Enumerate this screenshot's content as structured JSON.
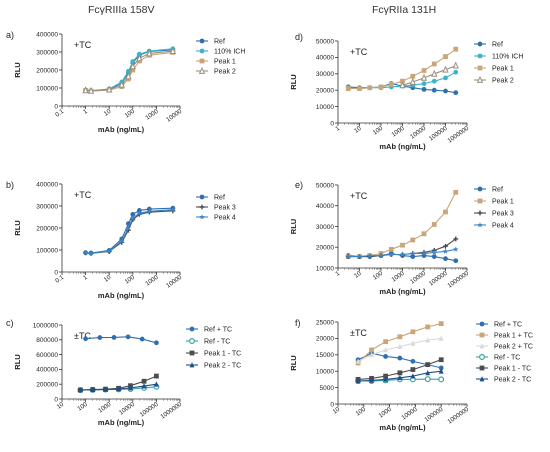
{
  "column_titles": [
    "FcγRIIIa 158V",
    "FcγRIIa 131H"
  ],
  "chart_data": [
    {
      "type": "line",
      "panel": "a)",
      "annotation": "+TC",
      "xlabel": "mAb (ng/mL)",
      "ylabel": "RLU",
      "xscale": "log",
      "xlim": [
        0.1,
        10000
      ],
      "ylim": [
        0,
        400000
      ],
      "xticks": [
        "0.1",
        "1",
        "10",
        "100",
        "1000",
        "10000"
      ],
      "yticks": [
        "0",
        "100000",
        "200000",
        "300000",
        "400000"
      ],
      "legend": "right",
      "grid": false,
      "series": [
        {
          "name": "Ref",
          "color": "#2f6fb0",
          "marker": "circle",
          "x": [
            1,
            1.7,
            10,
            34,
            65,
            100,
            190,
            500,
            5000
          ],
          "y": [
            88000,
            85000,
            93000,
            128000,
            185000,
            240000,
            283000,
            303000,
            312000
          ]
        },
        {
          "name": "110% ICH",
          "color": "#3bb3c9",
          "marker": "circle",
          "x": [
            1,
            1.7,
            10,
            34,
            65,
            100,
            190,
            500,
            5000
          ],
          "y": [
            87000,
            84000,
            95000,
            133000,
            193000,
            247000,
            288000,
            305000,
            318000
          ]
        },
        {
          "name": "Peak 1",
          "color": "#c9a679",
          "marker": "square",
          "x": [
            1,
            1.7,
            10,
            34,
            65,
            100,
            190,
            500,
            5000
          ],
          "y": [
            86000,
            83000,
            88000,
            108000,
            150000,
            200000,
            250000,
            282000,
            298000
          ]
        },
        {
          "name": "Peak 2",
          "color": "#9a8f7f",
          "marker": "triangle-open",
          "x": [
            1,
            1.7,
            10,
            34,
            65,
            100,
            190,
            500,
            5000
          ],
          "y": [
            87000,
            84000,
            91000,
            118000,
            165000,
            220000,
            265000,
            292000,
            305000
          ]
        }
      ]
    },
    {
      "type": "line",
      "panel": "b)",
      "annotation": "+TC",
      "xlabel": "mAb (ng/mL)",
      "ylabel": "RLU",
      "xscale": "log",
      "xlim": [
        0.1,
        10000
      ],
      "ylim": [
        0,
        400000
      ],
      "xticks": [
        "0.1",
        "1",
        "10",
        "100",
        "1000",
        "10000"
      ],
      "yticks": [
        "0",
        "100000",
        "200000",
        "300000",
        "400000"
      ],
      "legend": "right",
      "grid": false,
      "series": [
        {
          "name": "Ref",
          "color": "#2f6fb0",
          "marker": "circle",
          "x": [
            1,
            1.7,
            10,
            34,
            65,
            100,
            190,
            500,
            5000
          ],
          "y": [
            88000,
            86000,
            98000,
            150000,
            220000,
            262000,
            280000,
            286000,
            290000
          ]
        },
        {
          "name": "Peak 3",
          "color": "#4a4a55",
          "marker": "plus",
          "x": [
            1,
            1.7,
            10,
            34,
            65,
            100,
            190,
            500,
            5000
          ],
          "y": [
            87000,
            85000,
            93000,
            135000,
            190000,
            238000,
            262000,
            272000,
            278000
          ]
        },
        {
          "name": "Peak 4",
          "color": "#3c86c4",
          "marker": "star",
          "x": [
            1,
            1.7,
            10,
            34,
            65,
            100,
            190,
            500,
            5000
          ],
          "y": [
            87000,
            85000,
            95000,
            140000,
            200000,
            245000,
            268000,
            276000,
            283000
          ]
        }
      ]
    },
    {
      "type": "line",
      "panel": "c)",
      "annotation": "±TC",
      "xlabel": "mAb (ng/mL)",
      "ylabel": "RLU",
      "xscale": "log",
      "xlim": [
        10,
        1000000
      ],
      "ylim": [
        0,
        1000000
      ],
      "xticks": [
        "10",
        "100",
        "1000",
        "10000",
        "100000",
        "1000000"
      ],
      "yticks": [
        "0",
        "200000",
        "400000",
        "600000",
        "800000",
        "1000000"
      ],
      "legend": "right",
      "grid": false,
      "series": [
        {
          "name": "Ref + TC",
          "color": "#2f6fb0",
          "marker": "circle",
          "x": [
            100,
            400,
            1600,
            6300,
            25000,
            100000
          ],
          "y": [
            815000,
            830000,
            832000,
            840000,
            810000,
            760000
          ]
        },
        {
          "name": "Ref - TC",
          "color": "#3aa6a8",
          "marker": "circle-open",
          "x": [
            60,
            200,
            700,
            2500,
            8000,
            30000,
            100000
          ],
          "y": [
            120000,
            125000,
            128000,
            130000,
            135000,
            150000,
            165000
          ]
        },
        {
          "name": "Peak 1 - TC",
          "color": "#4d4d4d",
          "marker": "square",
          "x": [
            60,
            200,
            700,
            2500,
            8000,
            30000,
            100000
          ],
          "y": [
            122000,
            127000,
            132000,
            145000,
            180000,
            240000,
            310000
          ]
        },
        {
          "name": "Peak 2 - TC",
          "color": "#1f4e8c",
          "marker": "triangle",
          "x": [
            60,
            200,
            700,
            2500,
            8000,
            30000,
            100000
          ],
          "y": [
            121000,
            124000,
            128000,
            135000,
            150000,
            175000,
            200000
          ]
        }
      ]
    },
    {
      "type": "line",
      "panel": "d)",
      "annotation": "+TC",
      "xlabel": "mAb (ng/mL)",
      "ylabel": "RLU",
      "xscale": "log",
      "xlim": [
        1,
        1000000
      ],
      "ylim": [
        0,
        50000
      ],
      "xticks": [
        "1",
        "10",
        "100",
        "1000",
        "10000",
        "100000",
        "1000000"
      ],
      "yticks": [
        "0",
        "10000",
        "20000",
        "30000",
        "40000",
        "50000"
      ],
      "legend": "right",
      "grid": false,
      "series": [
        {
          "name": "Ref",
          "color": "#2f6fb0",
          "marker": "circle",
          "x": [
            3,
            10,
            30,
            100,
            300,
            1000,
            3000,
            10000,
            30000,
            100000,
            300000
          ],
          "y": [
            22000,
            21500,
            21500,
            22000,
            24000,
            22500,
            21500,
            20500,
            20000,
            19500,
            18500
          ]
        },
        {
          "name": "110% ICH",
          "color": "#3bb3c9",
          "marker": "circle",
          "x": [
            3,
            10,
            30,
            100,
            300,
            1000,
            3000,
            10000,
            30000,
            100000,
            300000
          ],
          "y": [
            21500,
            21000,
            21500,
            21500,
            22000,
            22500,
            23000,
            24000,
            25500,
            27500,
            31000
          ]
        },
        {
          "name": "Peak 1",
          "color": "#c9a679",
          "marker": "square",
          "x": [
            3,
            10,
            30,
            100,
            300,
            1000,
            3000,
            10000,
            30000,
            100000,
            300000
          ],
          "y": [
            21000,
            21000,
            21500,
            22000,
            23500,
            25500,
            28500,
            32000,
            36000,
            40500,
            45000
          ]
        },
        {
          "name": "Peak 2",
          "color": "#9a8f7f",
          "marker": "triangle-open",
          "x": [
            1000,
            3000,
            10000,
            30000,
            100000,
            300000
          ],
          "y": [
            23000,
            25000,
            27500,
            30000,
            32500,
            35000
          ]
        }
      ]
    },
    {
      "type": "line",
      "panel": "e)",
      "annotation": "+TC",
      "xlabel": "mAb (ng/mL)",
      "ylabel": "RLU",
      "xscale": "log",
      "xlim": [
        1,
        1000000
      ],
      "ylim": [
        10000,
        50000
      ],
      "xticks": [
        "1",
        "10",
        "100",
        "1000",
        "10000",
        "100000",
        "1000000"
      ],
      "yticks": [
        "10000",
        "20000",
        "30000",
        "40000",
        "50000"
      ],
      "legend": "right",
      "grid": false,
      "series": [
        {
          "name": "Ref",
          "color": "#2f6fb0",
          "marker": "circle",
          "x": [
            3,
            10,
            30,
            100,
            300,
            1000,
            3000,
            10000,
            30000,
            100000,
            300000
          ],
          "y": [
            16000,
            15500,
            15500,
            16000,
            17000,
            16000,
            15500,
            16000,
            15500,
            14500,
            13500
          ]
        },
        {
          "name": "Peak 1",
          "color": "#c9a679",
          "marker": "square",
          "x": [
            3,
            10,
            30,
            100,
            300,
            1000,
            3000,
            10000,
            30000,
            100000,
            300000
          ],
          "y": [
            15500,
            15500,
            16000,
            17000,
            19000,
            21000,
            23500,
            26500,
            31000,
            37000,
            46500
          ]
        },
        {
          "name": "Peak 3",
          "color": "#4a4a55",
          "marker": "plus",
          "x": [
            3,
            10,
            30,
            100,
            300,
            1000,
            3000,
            10000,
            30000,
            100000,
            300000
          ],
          "y": [
            15500,
            15500,
            15500,
            16000,
            16500,
            16500,
            17000,
            17500,
            18500,
            20500,
            24000
          ]
        },
        {
          "name": "Peak 4",
          "color": "#3c86c4",
          "marker": "star",
          "x": [
            3,
            10,
            30,
            100,
            300,
            1000,
            3000,
            10000,
            30000,
            100000,
            300000
          ],
          "y": [
            15500,
            15500,
            16000,
            16000,
            16500,
            16500,
            17000,
            17000,
            17500,
            18000,
            19000
          ]
        }
      ]
    },
    {
      "type": "line",
      "panel": "f)",
      "annotation": "±TC",
      "xlabel": "mAb (ng/mL)",
      "ylabel": "RLU",
      "xscale": "log",
      "xlim": [
        10,
        1000000
      ],
      "ylim": [
        0,
        25000
      ],
      "xticks": [
        "10",
        "100",
        "1000",
        "10000",
        "100000",
        "1000000"
      ],
      "yticks": [
        "0",
        "5000",
        "10000",
        "15000",
        "20000",
        "25000"
      ],
      "legend": "right",
      "grid": false,
      "series": [
        {
          "name": "Ref + TC",
          "color": "#2f6fb0",
          "marker": "circle",
          "x": [
            60,
            200,
            700,
            2500,
            8000,
            30000,
            100000
          ],
          "y": [
            13500,
            15500,
            14500,
            14000,
            13000,
            12000,
            11000
          ]
        },
        {
          "name": "Peak 1 + TC",
          "color": "#c9a679",
          "marker": "square",
          "x": [
            60,
            200,
            700,
            2500,
            8000,
            30000,
            100000
          ],
          "y": [
            12500,
            16500,
            19000,
            20500,
            22000,
            23500,
            24500
          ]
        },
        {
          "name": "Peak 2 + TC",
          "color": "#d9d9d9",
          "marker": "triangle",
          "x": [
            60,
            200,
            700,
            2500,
            8000,
            30000,
            100000
          ],
          "y": [
            13000,
            15000,
            16500,
            17500,
            18500,
            19500,
            20000
          ]
        },
        {
          "name": "Ref - TC",
          "color": "#3aa6a8",
          "marker": "circle-open",
          "x": [
            60,
            200,
            700,
            2500,
            8000,
            30000,
            100000
          ],
          "y": [
            7000,
            7000,
            7200,
            7500,
            7500,
            7600,
            7500
          ]
        },
        {
          "name": "Peak 1 - TC",
          "color": "#4d4d4d",
          "marker": "square",
          "x": [
            60,
            200,
            700,
            2500,
            8000,
            30000,
            100000
          ],
          "y": [
            7500,
            7800,
            8500,
            9500,
            10500,
            12000,
            13500
          ]
        },
        {
          "name": "Peak 2 - TC",
          "color": "#1f4e8c",
          "marker": "triangle",
          "x": [
            60,
            200,
            700,
            2500,
            8000,
            30000,
            100000
          ],
          "y": [
            7000,
            7200,
            7500,
            8000,
            8500,
            9500,
            10000
          ]
        }
      ]
    }
  ]
}
